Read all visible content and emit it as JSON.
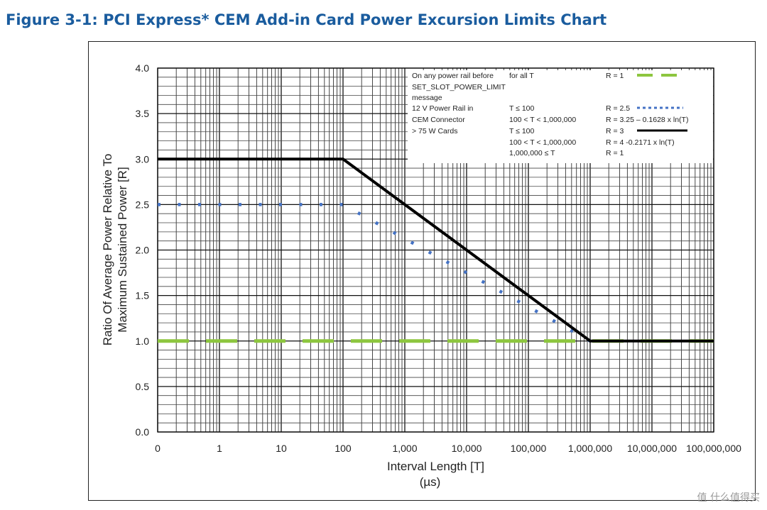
{
  "figure_title": "Figure 3-1: PCI Express* CEM Add-in Card Power Excursion Limits Chart",
  "watermark": "值 什么值得买",
  "chart_data": {
    "type": "line",
    "title": "",
    "xlabel": "Interval Length  [T]",
    "xunit": "(µs)",
    "ylabel": "Ratio Of Average Power Relative To",
    "ylabel2": "Maximum Sustained Power  [R]",
    "x_scale": "log",
    "x_ticks": [
      "0",
      "1",
      "10",
      "100",
      "1,000",
      "10,000",
      "100,000",
      "1,000,000",
      "10,000,000",
      "100,000,000"
    ],
    "y_ticks": [
      "0.0",
      "0.5",
      "1.0",
      "1.5",
      "2.0",
      "2.5",
      "3.0",
      "3.5",
      "4.0"
    ],
    "ylim": [
      0,
      4
    ],
    "grid": true,
    "legend_position": "top-right",
    "legend": [
      {
        "c1": "On any power rail before",
        "c2": "for all T",
        "c3": "R = 1",
        "line": "green-dash"
      },
      {
        "c1": "SET_SLOT_POWER_LIMIT",
        "c2": "",
        "c3": "",
        "line": ""
      },
      {
        "c1": "message",
        "c2": "",
        "c3": "",
        "line": ""
      },
      {
        "c1": "12 V Power Rail in",
        "c2": "T ≤ 100",
        "c3": "R = 2.5",
        "line": "blue-dot"
      },
      {
        "c1": "CEM Connector",
        "c2": "100 < T < 1,000,000",
        "c3": "R = 3.25 – 0.1628 x ln(T)",
        "line": ""
      },
      {
        "c1": "> 75 W Cards",
        "c2": "T ≤ 100",
        "c3": "R = 3",
        "line": "black-solid"
      },
      {
        "c1": "",
        "c2": "100 < T < 1,000,000",
        "c3": "R = 4 -0.2171 x  ln(T)",
        "line": ""
      },
      {
        "c1": "",
        "c2": "1,000,000  ≤ T",
        "c3": "R = 1",
        "line": ""
      }
    ],
    "series": [
      {
        "name": "On any power rail before SET_SLOT_POWER_LIMIT message",
        "color": "#8dc63f",
        "style": "dashed",
        "x": [
          0,
          100000000
        ],
        "y": [
          1,
          1
        ]
      },
      {
        "name": "12 V Power Rail in CEM Connector",
        "color": "#4472c4",
        "style": "dotted",
        "x": [
          0,
          1,
          10,
          100,
          1000,
          10000,
          100000,
          1000000
        ],
        "y": [
          2.5,
          2.5,
          2.5,
          2.5,
          2.125,
          1.75,
          1.375,
          1.0
        ]
      },
      {
        "name": "> 75 W Cards",
        "color": "#000000",
        "style": "solid",
        "x": [
          0,
          100,
          1000,
          10000,
          100000,
          1000000,
          100000000
        ],
        "y": [
          3,
          3,
          2.5,
          2.0,
          1.5,
          1.0,
          1.0
        ]
      }
    ]
  }
}
